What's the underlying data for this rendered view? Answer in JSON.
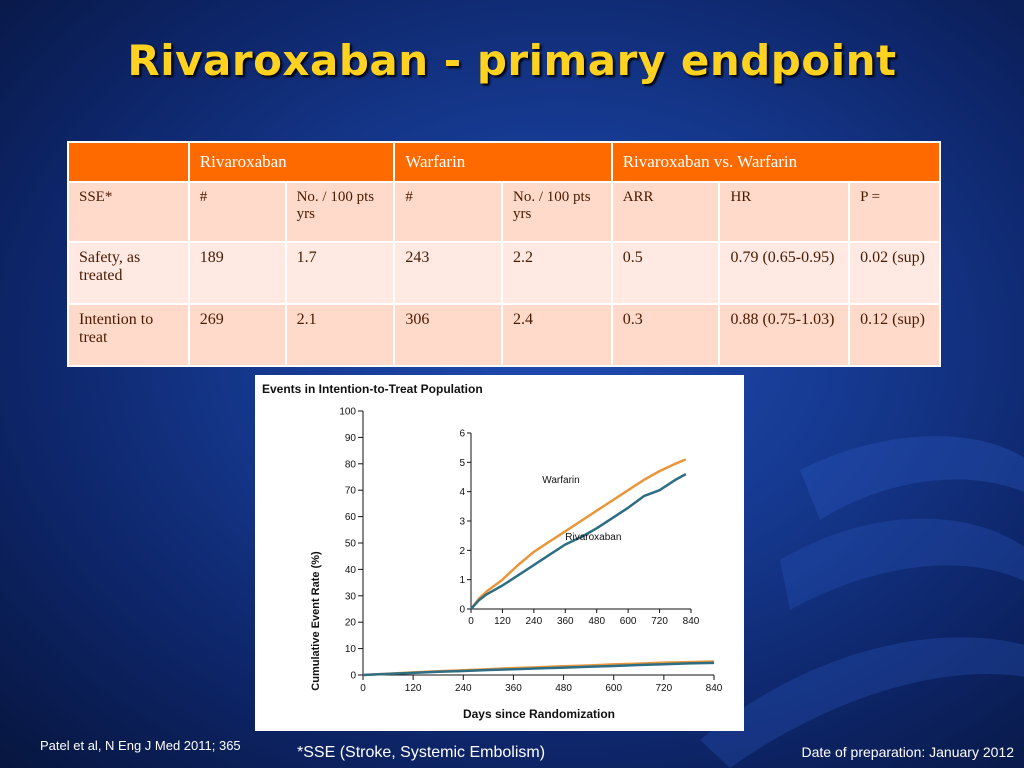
{
  "slide": {
    "title": "Rivaroxaban - primary endpoint",
    "citation": "Patel et al, N Eng J Med 2011; 365",
    "footnote": "*SSE (Stroke, Systemic Embolism)",
    "date_prep": "Date of preparation: January 2012"
  },
  "table": {
    "header": [
      "",
      "Rivaroxaban",
      "Warfarin",
      "Rivaroxaban vs. Warfarin"
    ],
    "subheader": [
      "SSE*",
      "#",
      "No. / 100 pts yrs",
      "#",
      "No. / 100 pts yrs",
      "ARR",
      "HR",
      "P ="
    ],
    "rows": [
      [
        "Safety, as treated",
        "189",
        "1.7",
        "243",
        "2.2",
        "0.5",
        "0.79 (0.65-0.95)",
        "0.02 (sup)"
      ],
      [
        "Intention to treat",
        "269",
        "2.1",
        "306",
        "2.4",
        "0.3",
        "0.88 (0.75-1.03)",
        "0.12 (sup)"
      ]
    ]
  },
  "chart_data": [
    {
      "type": "line",
      "title": "Events in Intention-to-Treat Population",
      "xlabel": "Days since Randomization",
      "ylabel": "Cumulative Event Rate (%)",
      "xlim": [
        0,
        840
      ],
      "ylim": [
        0,
        100
      ],
      "xticks": [
        "0",
        "120",
        "240",
        "360",
        "480",
        "600",
        "720",
        "840"
      ],
      "yticks": [
        "0",
        "10",
        "20",
        "30",
        "40",
        "50",
        "60",
        "70",
        "80",
        "90",
        "100"
      ],
      "series": [
        {
          "name": "Warfarin",
          "color": "#e8963a",
          "x": [
            0,
            60,
            120,
            180,
            240,
            300,
            360,
            420,
            480,
            540,
            600,
            660,
            720,
            780,
            840
          ],
          "y": [
            0,
            0.5,
            1.0,
            1.4,
            1.8,
            2.2,
            2.6,
            2.9,
            3.3,
            3.6,
            4.0,
            4.3,
            4.7,
            4.9,
            5.1
          ]
        },
        {
          "name": "Rivaroxaban",
          "color": "#2e6e84",
          "x": [
            0,
            60,
            120,
            180,
            240,
            300,
            360,
            420,
            480,
            540,
            600,
            660,
            720,
            780,
            840
          ],
          "y": [
            0,
            0.4,
            0.8,
            1.2,
            1.5,
            1.9,
            2.2,
            2.5,
            2.8,
            3.1,
            3.4,
            3.8,
            4.1,
            4.4,
            4.6
          ]
        }
      ]
    },
    {
      "type": "line",
      "xlim": [
        0,
        840
      ],
      "ylim": [
        0,
        6
      ],
      "xticks": [
        "0",
        "120",
        "240",
        "360",
        "480",
        "600",
        "720",
        "840"
      ],
      "yticks": [
        "0",
        "1",
        "2",
        "3",
        "4",
        "5",
        "6"
      ],
      "series": [
        {
          "name": "Warfarin",
          "color": "#e8963a",
          "x": [
            0,
            30,
            60,
            120,
            180,
            240,
            300,
            360,
            420,
            480,
            540,
            600,
            660,
            720,
            780,
            820
          ],
          "y": [
            0,
            0.35,
            0.6,
            1.0,
            1.5,
            1.95,
            2.3,
            2.65,
            3.0,
            3.35,
            3.7,
            4.05,
            4.4,
            4.7,
            4.95,
            5.1
          ]
        },
        {
          "name": "Rivaroxaban",
          "color": "#2e6e84",
          "x": [
            0,
            30,
            60,
            120,
            180,
            240,
            300,
            360,
            420,
            480,
            540,
            600,
            660,
            720,
            780,
            820
          ],
          "y": [
            0,
            0.3,
            0.5,
            0.8,
            1.15,
            1.5,
            1.85,
            2.2,
            2.45,
            2.75,
            3.1,
            3.45,
            3.85,
            4.05,
            4.4,
            4.6
          ]
        }
      ]
    }
  ]
}
